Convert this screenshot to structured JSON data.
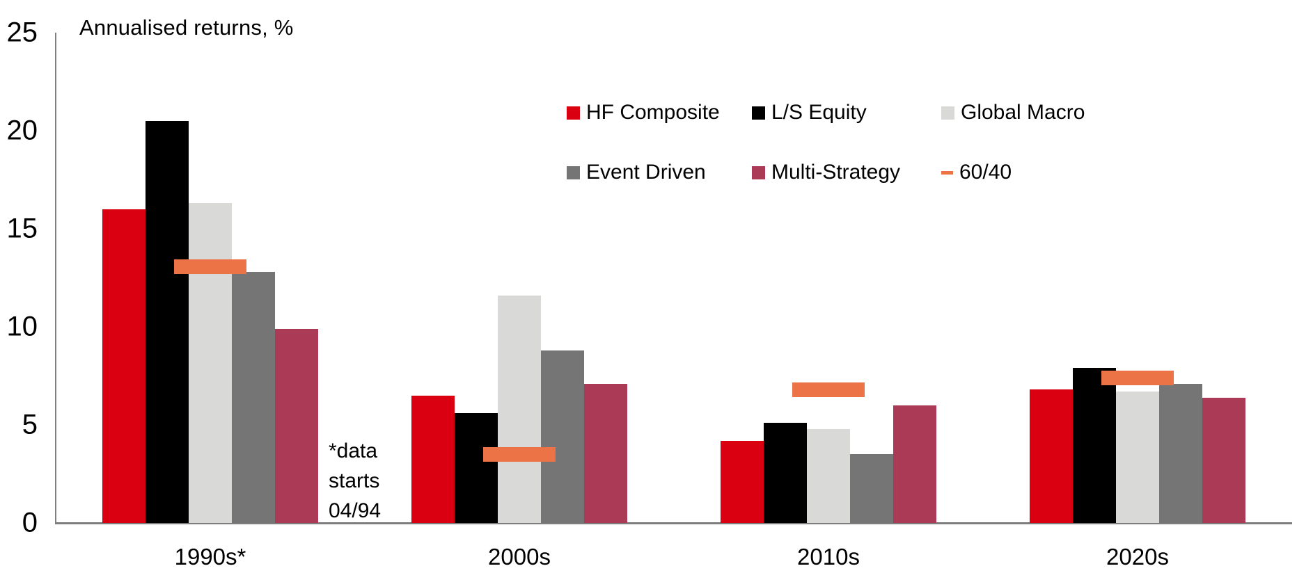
{
  "colors": {
    "hf_composite": "#db0011",
    "ls_equity": "#000000",
    "global_macro": "#d9d9d7",
    "event_driven": "#757575",
    "multi_strategy": "#aa3a55",
    "sixty_forty": "#eb7346",
    "axis": "#7d7d7d"
  },
  "chart_data": {
    "type": "bar",
    "title": "Annualised returns, %",
    "ylabel": "Annualised returns, %",
    "xlabel": "",
    "categories": [
      "1990s*",
      "2000s",
      "2010s",
      "2020s"
    ],
    "series": [
      {
        "name": "HF Composite",
        "type": "bar",
        "color_key": "hf_composite",
        "values": [
          16.0,
          6.5,
          4.2,
          6.8
        ]
      },
      {
        "name": "L/S Equity",
        "type": "bar",
        "color_key": "ls_equity",
        "values": [
          20.5,
          5.6,
          5.1,
          7.9
        ]
      },
      {
        "name": "Global Macro",
        "type": "bar",
        "color_key": "global_macro",
        "values": [
          16.3,
          11.6,
          4.8,
          6.7
        ]
      },
      {
        "name": "Event Driven",
        "type": "bar",
        "color_key": "event_driven",
        "values": [
          12.8,
          8.8,
          3.5,
          7.1
        ]
      },
      {
        "name": "Multi-Strategy",
        "type": "bar",
        "color_key": "multi_strategy",
        "values": [
          9.9,
          7.1,
          6.0,
          6.4
        ]
      },
      {
        "name": "60/40",
        "type": "dash",
        "color_key": "sixty_forty",
        "values": [
          13.1,
          3.5,
          6.8,
          7.4
        ]
      }
    ],
    "ylim": [
      0,
      25
    ],
    "yticks": [
      0,
      5,
      10,
      15,
      20,
      25
    ],
    "grid": false,
    "legend_position": "top-right",
    "annotation": {
      "lines": [
        "*data",
        "starts",
        "04/94"
      ]
    }
  }
}
